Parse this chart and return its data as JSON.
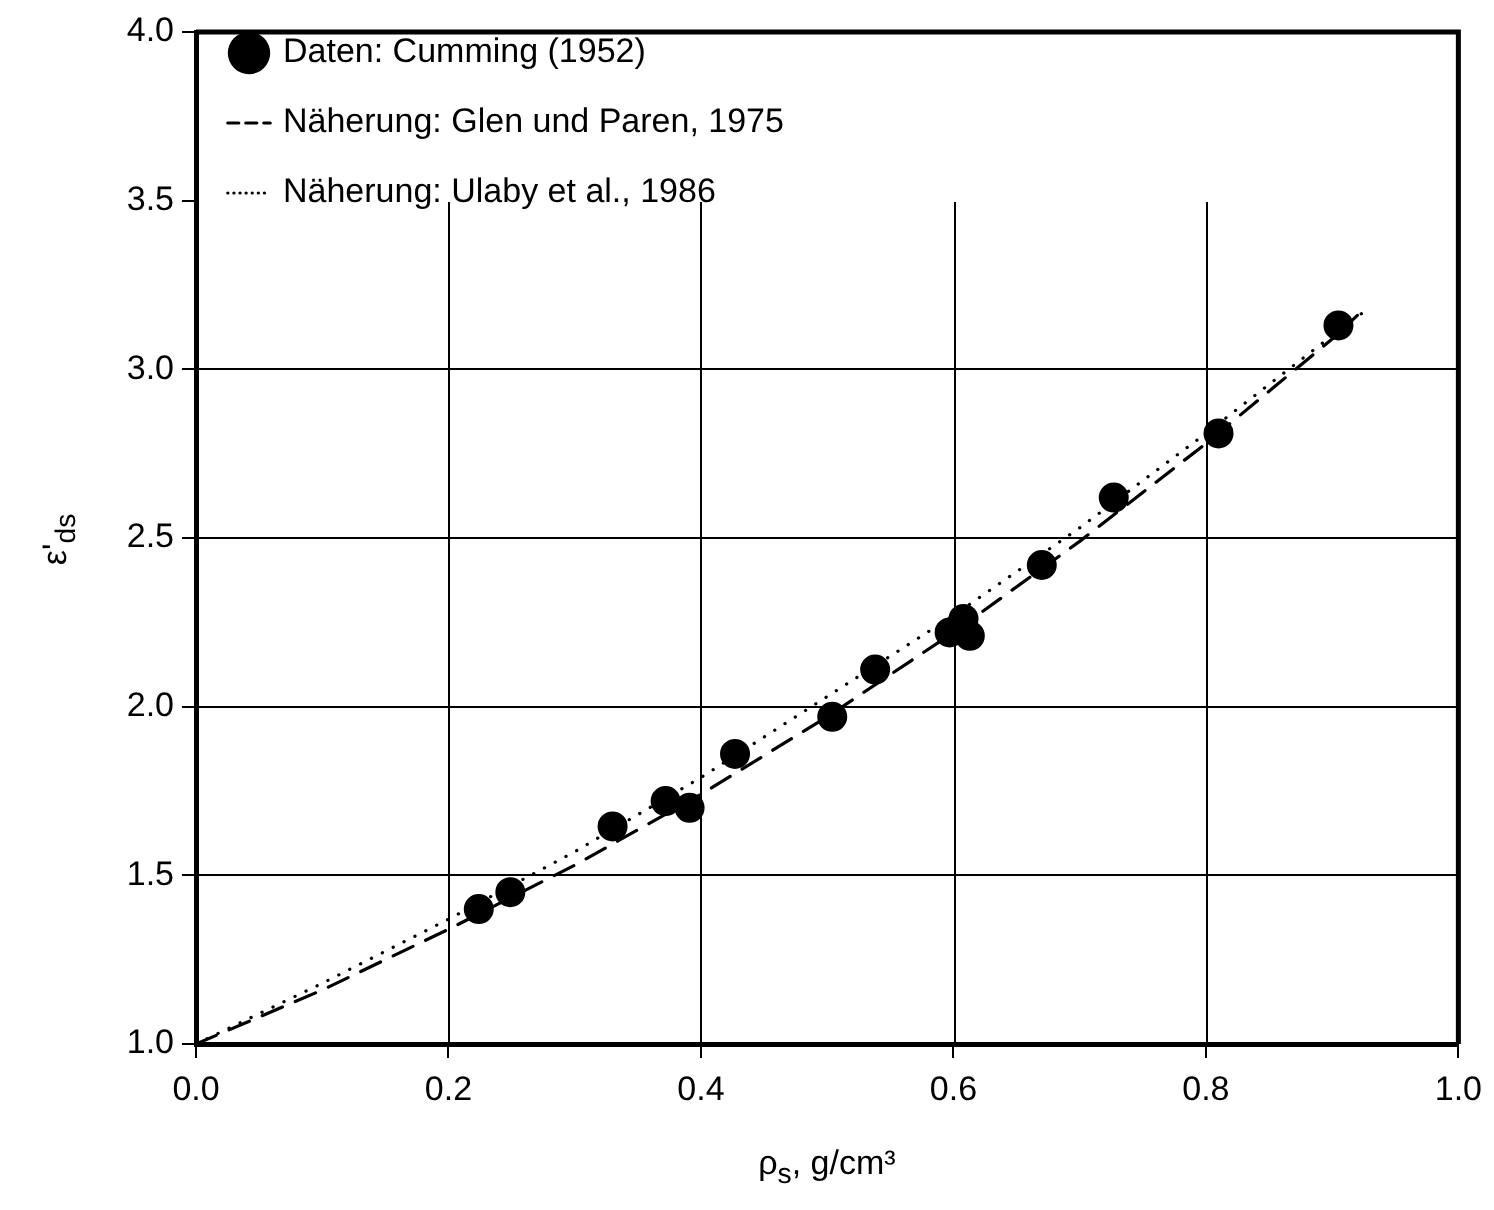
{
  "chart_data": {
    "type": "scatter",
    "xlabel": "ρ$_{s}$, g/cm³",
    "ylabel": "ε'$_{ds}$",
    "xlim": [
      0,
      1
    ],
    "ylim": [
      1,
      4
    ],
    "xticks": [
      {
        "value": 0,
        "label": "0.0"
      },
      0.2,
      0.4,
      0.6,
      0.8,
      {
        "value": 1,
        "label": "1.0"
      }
    ],
    "yticks": [
      {
        "value": 1,
        "label": "1.0"
      },
      1.5,
      {
        "value": 2,
        "label": "2.0"
      },
      2.5,
      {
        "value": 3,
        "label": "3.0"
      },
      3.5,
      {
        "value": 4,
        "label": "4.0"
      }
    ],
    "grid": true,
    "legend": "top",
    "series": [
      {
        "name": "Daten: Cumming (1952)",
        "type": "scatter",
        "marker": "circle",
        "color": "#000000",
        "x": [
          0.224,
          0.249,
          0.33,
          0.372,
          0.391,
          0.427,
          0.504,
          0.538,
          0.597,
          0.608,
          0.613,
          0.67,
          0.727,
          0.81,
          0.905
        ],
        "values": [
          1.4,
          1.45,
          1.645,
          1.72,
          1.7,
          1.86,
          1.97,
          2.11,
          2.22,
          2.26,
          2.21,
          2.42,
          2.62,
          2.81,
          3.13
        ]
      },
      {
        "name": "Näherung: Glen und Paren, 1975",
        "type": "line",
        "line_style": "dashed",
        "marker": "none",
        "color": "#000000",
        "x": [
          0,
          0.1,
          0.2,
          0.3,
          0.4,
          0.5,
          0.6,
          0.7,
          0.8,
          0.9,
          0.92
        ],
        "values": [
          1,
          1.16,
          1.34,
          1.53,
          1.74,
          1.97,
          2.22,
          2.49,
          2.78,
          3.09,
          3.16
        ]
      },
      {
        "name": "Näherung: Ulaby et al., 1986",
        "type": "line",
        "line_style": "dotted",
        "marker": "none",
        "color": "#000000",
        "x": [
          0,
          0.1,
          0.2,
          0.3,
          0.4,
          0.5,
          0.6,
          0.7,
          0.8,
          0.9,
          0.925
        ],
        "values": [
          1,
          1.18,
          1.37,
          1.57,
          1.79,
          2.03,
          2.27,
          2.53,
          2.81,
          3.1,
          3.17
        ]
      }
    ]
  }
}
